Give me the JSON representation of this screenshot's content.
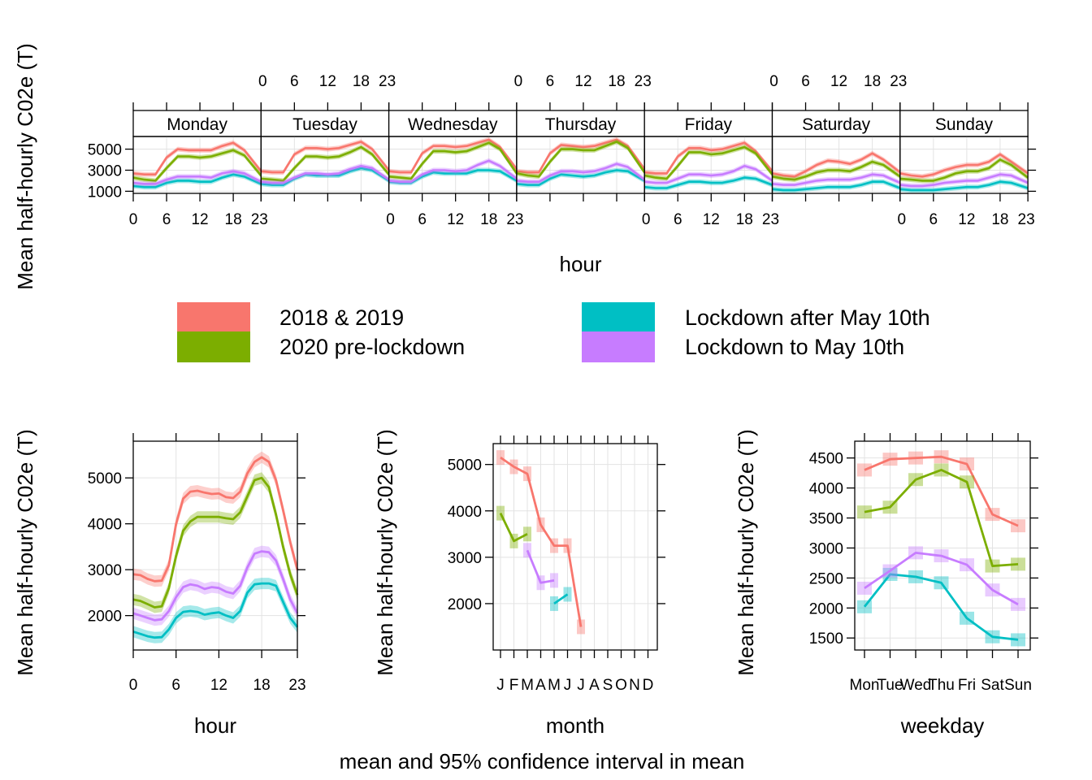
{
  "colors": {
    "2018 & 2019": "#F8766D",
    "2020 pre-lockdown": "#7CAE00",
    "Lockdown after May 10th": "#00BFC4",
    "Lockdown to May 10th": "#C77CFF",
    "strip_bg": "#ffffff",
    "grid": "#e3e3e3"
  },
  "legend": {
    "items": [
      {
        "label": "2018 & 2019",
        "key": "2018 & 2019"
      },
      {
        "label": "2020 pre-lockdown",
        "key": "2020 pre-lockdown"
      },
      {
        "label": "Lockdown after May 10th",
        "key": "Lockdown after May 10th"
      },
      {
        "label": "Lockdown to May 10th",
        "key": "Lockdown to May 10th"
      }
    ]
  },
  "footer": "mean and 95% confidence interval in mean",
  "chart_data": [
    {
      "type": "line",
      "panel": "hour by weekday",
      "xlabel": "hour",
      "ylabel": "Mean half-hourly C02e (T)",
      "strips": [
        "Monday",
        "Tuesday",
        "Wednesday",
        "Thursday",
        "Friday",
        "Saturday",
        "Sunday"
      ],
      "x_ticks": [
        "0",
        "6",
        "12",
        "18",
        "23"
      ],
      "y_ticks": [
        "1000",
        "3000",
        "5000"
      ],
      "ylim": [
        800,
        6200
      ],
      "xlim": [
        0,
        23
      ],
      "x": [
        0,
        2,
        4,
        6,
        8,
        10,
        12,
        14,
        16,
        18,
        20,
        23
      ],
      "series": [
        {
          "name": "2018 & 2019",
          "days": [
            [
              2700,
              2600,
              2600,
              4200,
              5000,
              4900,
              4900,
              4900,
              5300,
              5600,
              4900,
              2900
            ],
            [
              2900,
              2800,
              2800,
              4500,
              5100,
              5100,
              5000,
              5100,
              5400,
              5700,
              5000,
              3000
            ],
            [
              2900,
              2800,
              2800,
              4600,
              5300,
              5300,
              5200,
              5300,
              5600,
              5900,
              5200,
              3100
            ],
            [
              2900,
              2800,
              2800,
              4600,
              5400,
              5300,
              5200,
              5300,
              5600,
              5900,
              5300,
              3100
            ],
            [
              2800,
              2700,
              2700,
              4300,
              5100,
              5100,
              4900,
              5000,
              5300,
              5600,
              4800,
              2900
            ],
            [
              2700,
              2500,
              2400,
              2900,
              3500,
              3900,
              3800,
              3600,
              4000,
              4600,
              4000,
              2800
            ],
            [
              2700,
              2500,
              2400,
              2600,
              3000,
              3300,
              3500,
              3500,
              3800,
              4500,
              3800,
              2700
            ]
          ]
        },
        {
          "name": "2020 pre-lockdown",
          "days": [
            [
              2300,
              2100,
              2000,
              3200,
              4300,
              4300,
              4200,
              4300,
              4600,
              4900,
              4400,
              2500
            ],
            [
              2200,
              2100,
              2000,
              3200,
              4300,
              4300,
              4200,
              4300,
              4700,
              5200,
              4500,
              2600
            ],
            [
              2400,
              2300,
              2200,
              3600,
              4800,
              4800,
              4700,
              4800,
              5200,
              5600,
              5000,
              2700
            ],
            [
              2700,
              2500,
              2400,
              3800,
              5000,
              5000,
              4900,
              4900,
              5300,
              5700,
              5100,
              2800
            ],
            [
              2500,
              2300,
              2200,
              3400,
              4700,
              4700,
              4500,
              4600,
              4900,
              5200,
              4600,
              2600
            ],
            [
              2400,
              2200,
              2100,
              2400,
              2800,
              3000,
              3000,
              2900,
              3300,
              3800,
              3500,
              2400
            ],
            [
              2200,
              2100,
              2000,
              2000,
              2300,
              2700,
              2900,
              2900,
              3200,
              4000,
              3500,
              2300
            ]
          ]
        },
        {
          "name": "Lockdown after May 10th",
          "days": [
            [
              1500,
              1400,
              1400,
              1800,
              2000,
              2000,
              1900,
              1900,
              2300,
              2600,
              2400,
              1700
            ],
            [
              1700,
              1600,
              1600,
              2200,
              2600,
              2500,
              2500,
              2500,
              2900,
              3200,
              3000,
              2000
            ],
            [
              1900,
              1800,
              1800,
              2400,
              2800,
              2700,
              2700,
              2700,
              3000,
              3000,
              2900,
              2000
            ],
            [
              1700,
              1600,
              1600,
              2200,
              2600,
              2500,
              2400,
              2500,
              2800,
              3000,
              2900,
              2000
            ],
            [
              1400,
              1300,
              1300,
              1600,
              1900,
              1900,
              1800,
              1800,
              2000,
              2300,
              2200,
              1600
            ],
            [
              1200,
              1100,
              1100,
              1200,
              1300,
              1400,
              1400,
              1400,
              1600,
              1900,
              1900,
              1300
            ],
            [
              1200,
              1100,
              1100,
              1100,
              1200,
              1300,
              1400,
              1400,
              1600,
              1900,
              1800,
              1300
            ]
          ]
        },
        {
          "name": "Lockdown to May 10th",
          "days": [
            [
              1800,
              1700,
              1700,
              2100,
              2400,
              2400,
              2400,
              2300,
              2700,
              2900,
              2700,
              1900
            ],
            [
              1900,
              1800,
              1800,
              2300,
              2700,
              2700,
              2600,
              2700,
              3100,
              3400,
              3200,
              2100
            ],
            [
              2000,
              1900,
              1900,
              2600,
              3000,
              3000,
              2900,
              3000,
              3500,
              3900,
              3400,
              2200
            ],
            [
              2000,
              1900,
              1900,
              2500,
              2900,
              2900,
              2800,
              2900,
              3200,
              3600,
              3300,
              2100
            ],
            [
              1900,
              1800,
              1800,
              2200,
              2600,
              2600,
              2500,
              2600,
              2900,
              3400,
              3100,
              2000
            ],
            [
              1700,
              1600,
              1600,
              1800,
              2000,
              2100,
              2100,
              2100,
              2300,
              2600,
              2500,
              1800
            ],
            [
              1600,
              1500,
              1500,
              1600,
              1800,
              1900,
              2000,
              2000,
              2300,
              2600,
              2500,
              1800
            ]
          ]
        }
      ]
    },
    {
      "type": "line",
      "panel": "hour",
      "xlabel": "hour",
      "ylabel": "Mean half-hourly C02e (T)",
      "x_ticks": [
        "0",
        "6",
        "12",
        "18",
        "23"
      ],
      "y_ticks": [
        "2000",
        "3000",
        "4000",
        "5000"
      ],
      "ylim": [
        1250,
        5800
      ],
      "xlim": [
        0,
        23
      ],
      "x": [
        0,
        1,
        2,
        3,
        4,
        5,
        6,
        7,
        8,
        9,
        10,
        11,
        12,
        13,
        14,
        15,
        16,
        17,
        18,
        19,
        20,
        21,
        22,
        23
      ],
      "series": [
        {
          "name": "2018 & 2019",
          "values": [
            2900,
            2880,
            2800,
            2750,
            2760,
            3100,
            4000,
            4550,
            4700,
            4720,
            4680,
            4650,
            4660,
            4580,
            4560,
            4700,
            5100,
            5350,
            5450,
            5350,
            4950,
            4300,
            3600,
            3000
          ]
        },
        {
          "name": "2020 pre-lockdown",
          "values": [
            2350,
            2320,
            2250,
            2180,
            2200,
            2600,
            3300,
            3850,
            4050,
            4150,
            4150,
            4150,
            4150,
            4120,
            4100,
            4250,
            4600,
            4950,
            5000,
            4800,
            4200,
            3500,
            2900,
            2450
          ]
        },
        {
          "name": "Lockdown after May 10th",
          "values": [
            1650,
            1600,
            1550,
            1520,
            1530,
            1700,
            1950,
            2080,
            2100,
            2080,
            2020,
            2050,
            2070,
            2000,
            1950,
            2100,
            2500,
            2680,
            2700,
            2700,
            2650,
            2300,
            1950,
            1750
          ]
        },
        {
          "name": "Lockdown to May 10th",
          "values": [
            2050,
            2000,
            1950,
            1900,
            1920,
            2100,
            2400,
            2620,
            2680,
            2650,
            2580,
            2620,
            2600,
            2520,
            2480,
            2650,
            3050,
            3350,
            3400,
            3380,
            3200,
            2800,
            2350,
            2050
          ]
        }
      ]
    },
    {
      "type": "line",
      "panel": "month",
      "xlabel": "month",
      "ylabel": "Mean half-hourly C02e (T)",
      "categories": [
        "J",
        "F",
        "M",
        "A",
        "M",
        "J",
        "J",
        "A",
        "S",
        "O",
        "N",
        "D"
      ],
      "y_ticks": [
        "2000",
        "3000",
        "4000",
        "5000"
      ],
      "ylim": [
        1000,
        5450
      ],
      "series": [
        {
          "name": "2018 & 2019",
          "values": [
            5150,
            4950,
            4800,
            3700,
            3250,
            3250,
            1500,
            null,
            null,
            null,
            null,
            null
          ]
        },
        {
          "name": "2020 pre-lockdown",
          "values": [
            3950,
            3350,
            3500,
            null,
            null,
            null,
            null,
            null,
            null,
            null,
            null,
            null
          ]
        },
        {
          "name": "Lockdown after May 10th",
          "values": [
            null,
            null,
            null,
            null,
            2000,
            2200,
            null,
            null,
            null,
            null,
            null,
            null
          ]
        },
        {
          "name": "Lockdown to May 10th",
          "values": [
            null,
            null,
            3150,
            2450,
            2500,
            null,
            null,
            null,
            null,
            null,
            null,
            null
          ]
        }
      ]
    },
    {
      "type": "line",
      "panel": "weekday",
      "xlabel": "weekday",
      "ylabel": "Mean half-hourly C02e (T)",
      "categories": [
        "Mon",
        "Tue",
        "Wed",
        "Thu",
        "Fri",
        "Sat",
        "Sun"
      ],
      "y_ticks": [
        "1500",
        "2000",
        "2500",
        "3000",
        "3500",
        "4000",
        "4500"
      ],
      "ylim": [
        1300,
        4780
      ],
      "series": [
        {
          "name": "2018 & 2019",
          "values": [
            4300,
            4480,
            4500,
            4520,
            4400,
            3560,
            3370
          ]
        },
        {
          "name": "2020 pre-lockdown",
          "values": [
            3600,
            3680,
            4140,
            4300,
            4100,
            2700,
            2730
          ]
        },
        {
          "name": "Lockdown after May 10th",
          "values": [
            2020,
            2560,
            2520,
            2420,
            1830,
            1520,
            1470
          ]
        },
        {
          "name": "Lockdown to May 10th",
          "values": [
            2330,
            2620,
            2920,
            2870,
            2720,
            2300,
            2060
          ]
        }
      ]
    }
  ]
}
